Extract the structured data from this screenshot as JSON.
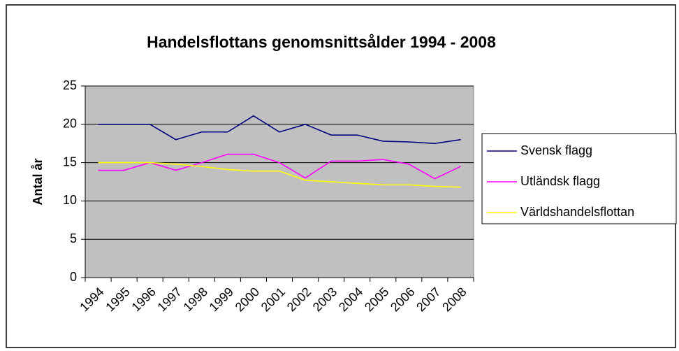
{
  "chart_data": {
    "type": "line",
    "title": "Handelsflottans genomsnittsålder 1994 - 2008",
    "y_label": "Antal år",
    "categories": [
      "1994",
      "1995",
      "1996",
      "1997",
      "1998",
      "1999",
      "2000",
      "2001",
      "2002",
      "2003",
      "2004",
      "2005",
      "2006",
      "2007",
      "2008"
    ],
    "series": [
      {
        "name": "Svensk flagg",
        "color": "#000080",
        "values": [
          20,
          20,
          20,
          18,
          19,
          19,
          21.1,
          19,
          20,
          18.6,
          18.6,
          17.8,
          17.7,
          17.5,
          18
        ]
      },
      {
        "name": "Utländsk flagg",
        "color": "#ff00ff",
        "values": [
          14,
          14,
          15,
          14,
          15,
          16.1,
          16.1,
          15,
          13,
          15.2,
          15.2,
          15.4,
          14.8,
          12.9,
          14.5
        ]
      },
      {
        "name": "Världshandelsflottan",
        "color": "#ffff00",
        "values": [
          15,
          15,
          15,
          14.8,
          14.5,
          14.1,
          13.9,
          13.9,
          12.7,
          12.5,
          12.3,
          12.1,
          12.1,
          11.9,
          11.8
        ]
      }
    ],
    "ylim": [
      0,
      25
    ],
    "yticks": [
      0,
      5,
      10,
      15,
      20,
      25
    ],
    "grid": true,
    "legend": "right"
  }
}
